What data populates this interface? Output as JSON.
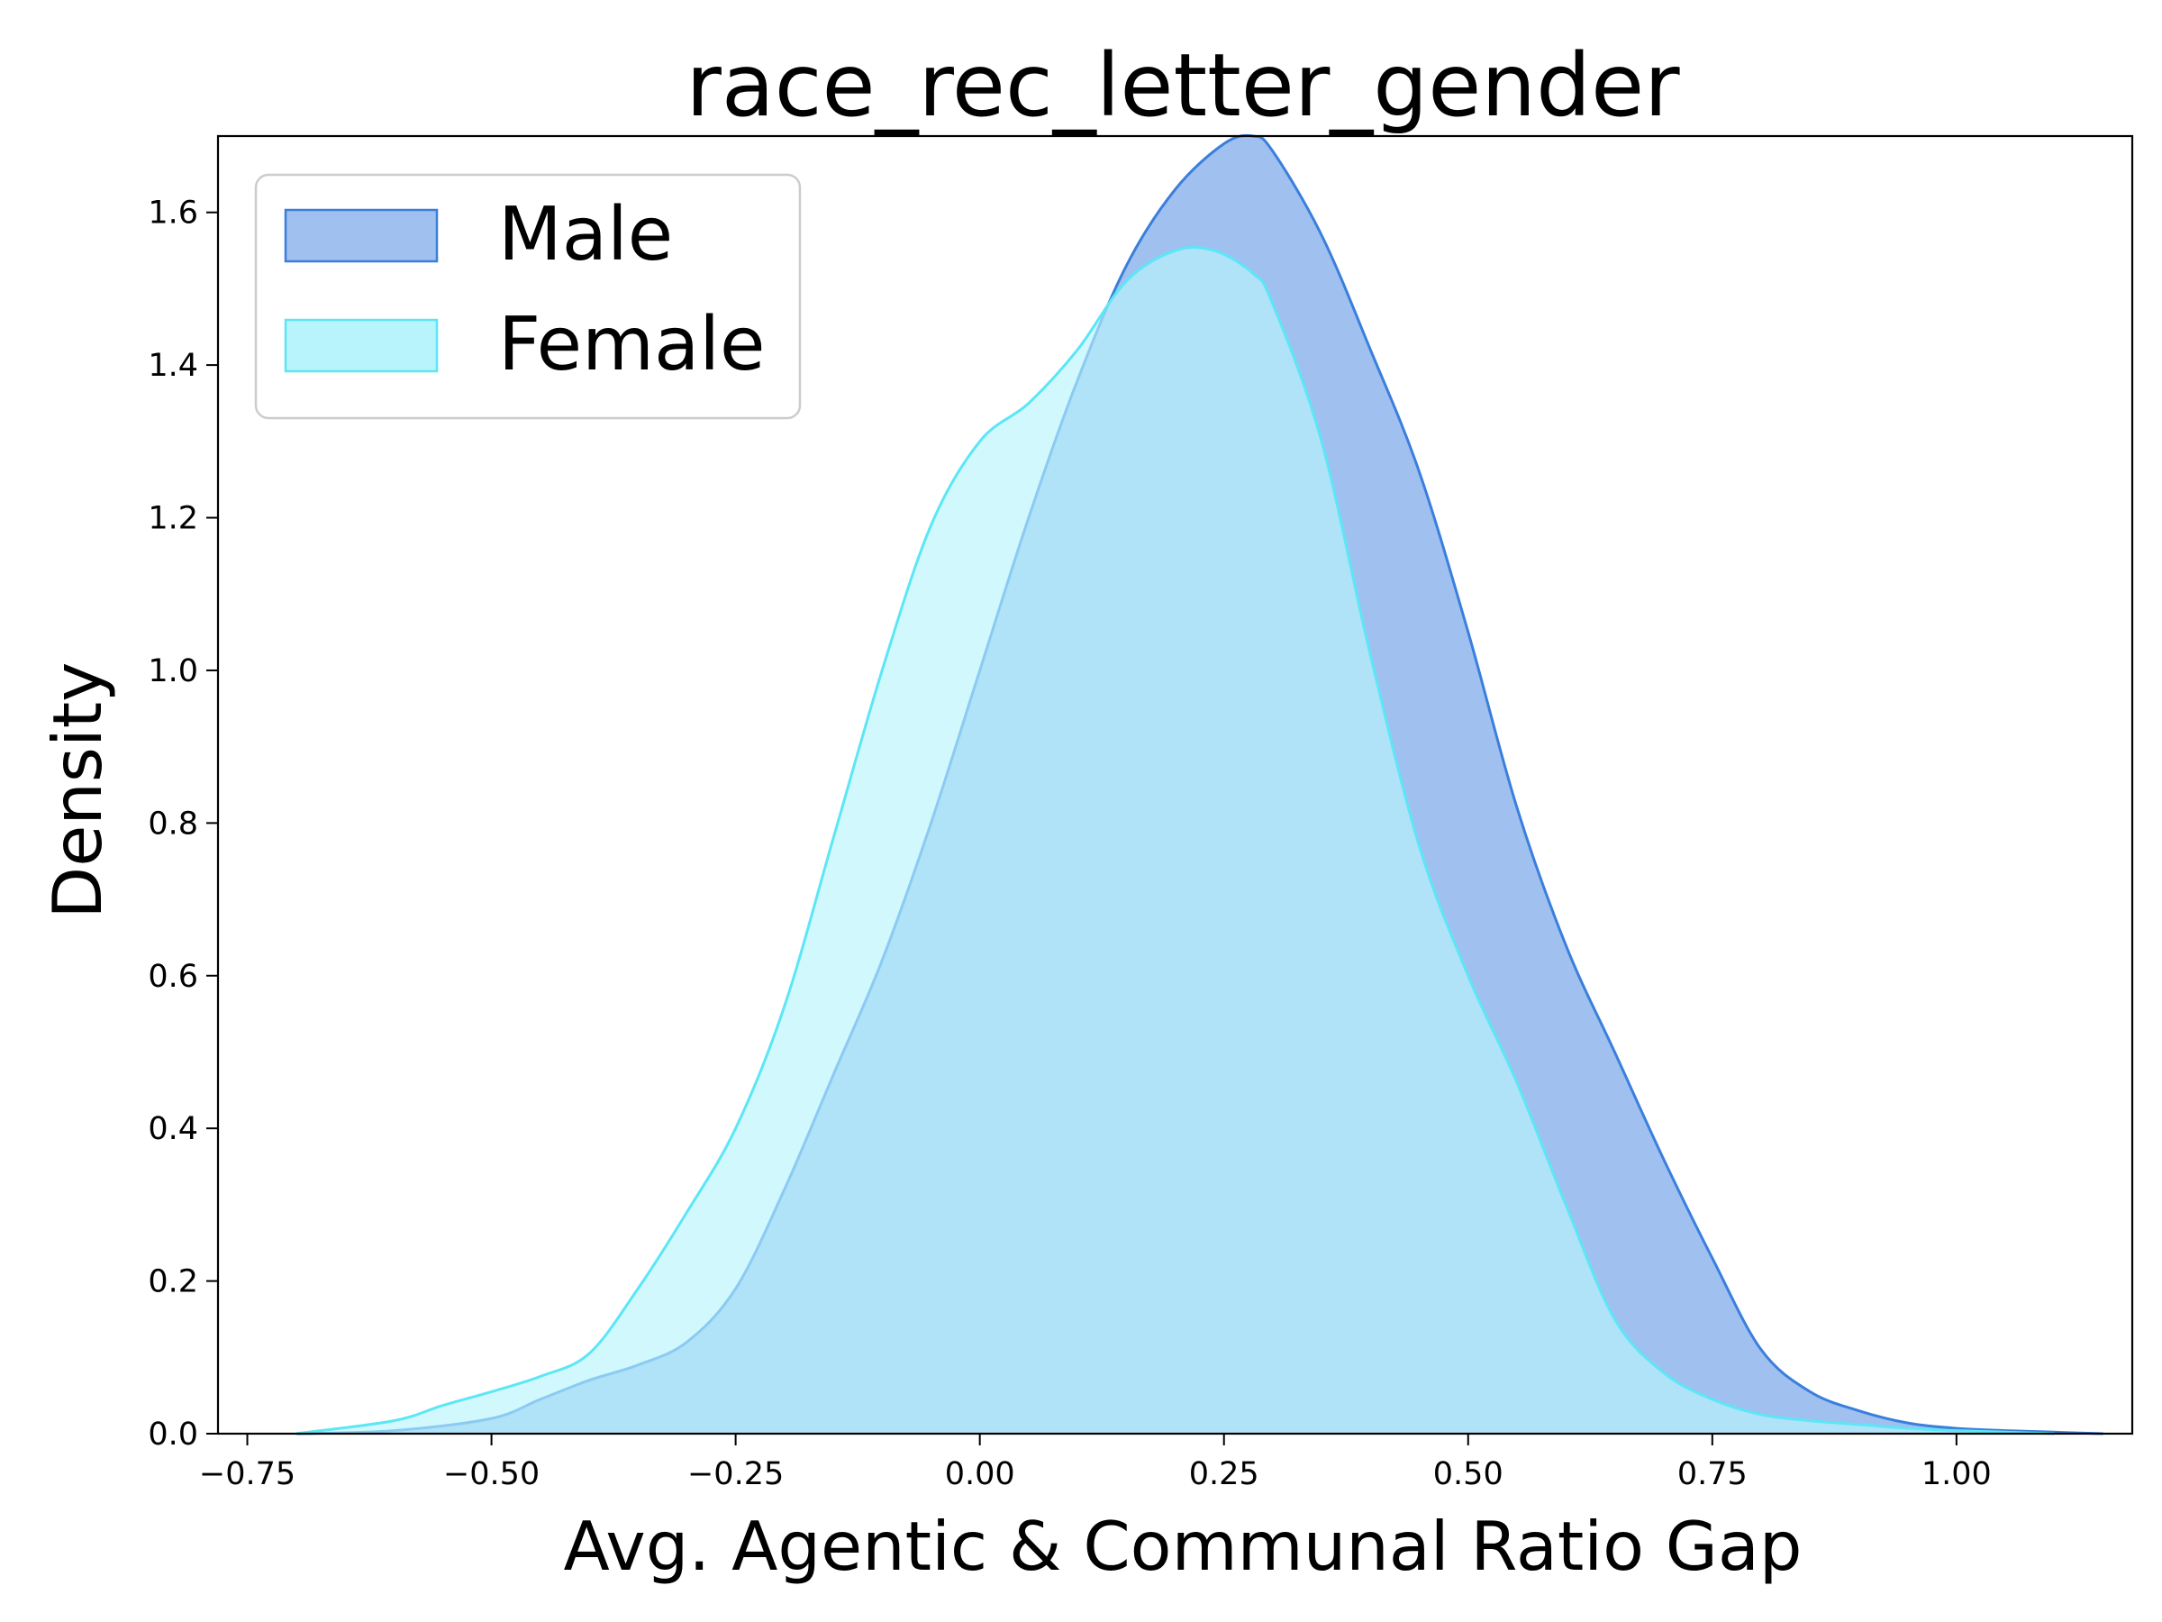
{
  "chart_data": {
    "type": "area",
    "title": "race_rec_letter_gender",
    "xlabel": "Avg. Agentic & Communal Ratio Gap",
    "ylabel": "Density",
    "xlim": [
      -0.78,
      1.18
    ],
    "ylim": [
      0,
      1.7
    ],
    "x_ticks": [
      -0.75,
      -0.5,
      -0.25,
      0.0,
      0.25,
      0.5,
      0.75,
      1.0
    ],
    "x_tick_labels": [
      "−0.75",
      "−0.50",
      "−0.25",
      "0.00",
      "0.25",
      "0.50",
      "0.75",
      "1.00"
    ],
    "y_ticks": [
      0.0,
      0.2,
      0.4,
      0.6,
      0.8,
      1.0,
      1.2,
      1.4,
      1.6
    ],
    "y_tick_labels": [
      "0.0",
      "0.2",
      "0.4",
      "0.6",
      "0.8",
      "1.0",
      "1.2",
      "1.4",
      "1.6"
    ],
    "grid": false,
    "legend_position": "top-left",
    "series": [
      {
        "name": "Male",
        "fill": "#a0c0f0",
        "stroke": "#3a7fdc",
        "x": [
          -0.7,
          -0.6,
          -0.5,
          -0.45,
          -0.4,
          -0.35,
          -0.3,
          -0.25,
          -0.2,
          -0.15,
          -0.1,
          -0.05,
          0.0,
          0.05,
          0.1,
          0.15,
          0.2,
          0.25,
          0.28,
          0.3,
          0.35,
          0.4,
          0.45,
          0.5,
          0.55,
          0.6,
          0.65,
          0.7,
          0.75,
          0.8,
          0.85,
          0.9,
          0.95,
          1.0,
          1.05,
          1.1,
          1.15
        ],
        "y": [
          0.0,
          0.004,
          0.02,
          0.045,
          0.07,
          0.09,
          0.12,
          0.19,
          0.32,
          0.47,
          0.62,
          0.8,
          1.0,
          1.2,
          1.38,
          1.53,
          1.63,
          1.69,
          1.7,
          1.68,
          1.57,
          1.42,
          1.26,
          1.05,
          0.82,
          0.64,
          0.5,
          0.36,
          0.23,
          0.11,
          0.055,
          0.03,
          0.014,
          0.007,
          0.004,
          0.002,
          0.0
        ]
      },
      {
        "name": "Female",
        "fill": "#b8f4fc",
        "stroke": "#5ce6f6",
        "x": [
          -0.7,
          -0.6,
          -0.55,
          -0.5,
          -0.45,
          -0.4,
          -0.35,
          -0.3,
          -0.25,
          -0.2,
          -0.15,
          -0.1,
          -0.05,
          0.0,
          0.05,
          0.1,
          0.15,
          0.2,
          0.24,
          0.28,
          0.3,
          0.35,
          0.4,
          0.45,
          0.5,
          0.55,
          0.6,
          0.65,
          0.7,
          0.75,
          0.8,
          0.85,
          0.9,
          0.95,
          1.0,
          1.05,
          1.1
        ],
        "y": [
          0.0,
          0.017,
          0.037,
          0.055,
          0.075,
          0.105,
          0.19,
          0.29,
          0.4,
          0.56,
          0.78,
          1.0,
          1.19,
          1.3,
          1.35,
          1.42,
          1.51,
          1.55,
          1.55,
          1.52,
          1.48,
          1.3,
          1.02,
          0.77,
          0.6,
          0.46,
          0.3,
          0.15,
          0.08,
          0.045,
          0.025,
          0.017,
          0.012,
          0.007,
          0.004,
          0.002,
          0.0
        ]
      }
    ]
  }
}
